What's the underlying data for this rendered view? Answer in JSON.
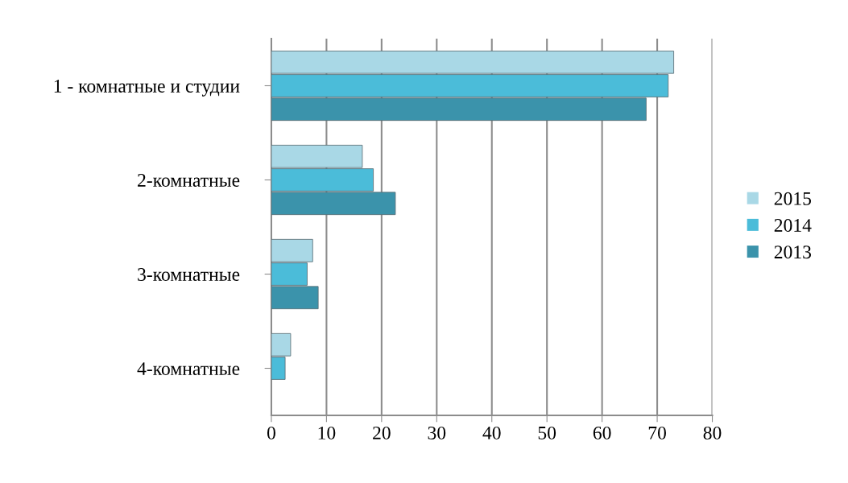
{
  "chart_data": {
    "type": "bar",
    "orientation": "horizontal",
    "categories": [
      "1 - комнатные и студии",
      "2-комнатные",
      "3-комнатные",
      "4-комнатные"
    ],
    "series": [
      {
        "name": "2015",
        "color": "#a9d8e6",
        "values": [
          73,
          16.5,
          7.5,
          3.5
        ]
      },
      {
        "name": "2014",
        "color": "#4bbcd9",
        "values": [
          72,
          18.5,
          6.5,
          2.5
        ]
      },
      {
        "name": "2013",
        "color": "#3b93ab",
        "values": [
          68,
          22.5,
          8.5,
          null
        ]
      }
    ],
    "xlim": [
      0,
      80
    ],
    "xticks": [
      0,
      10,
      20,
      30,
      40,
      50,
      60,
      70,
      80
    ],
    "grid": "x",
    "legend": "right"
  }
}
